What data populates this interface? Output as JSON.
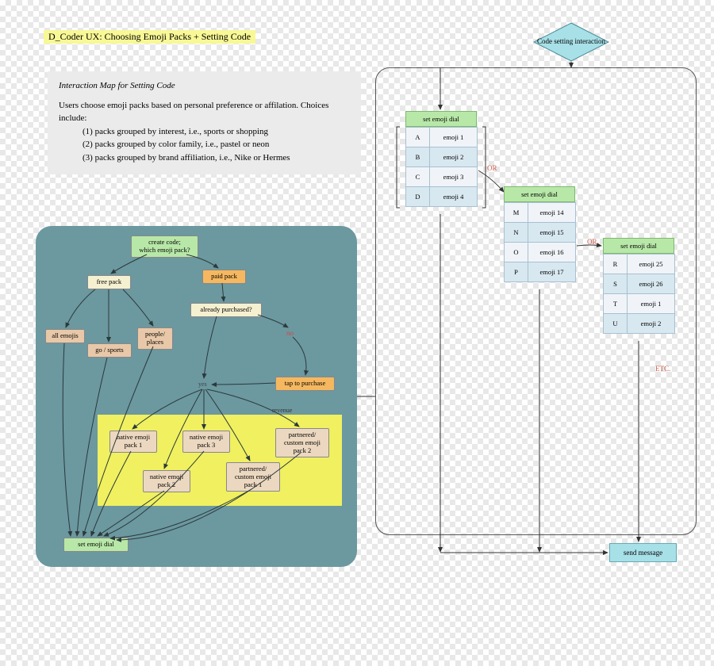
{
  "title": "D_Coder UX: Choosing Emoji Packs + Setting Code",
  "intro": {
    "heading": "Interaction Map for Setting Code",
    "body": "Users choose emoji packs based on personal preference or affilation. Choices include:",
    "items": [
      "(1) packs grouped by interest, i.e., sports or shopping",
      "(2) packs grouped by color family, i.e., pastel or neon",
      "(3) packs grouped by brand affiliation, i.e., Nike or Hermes"
    ]
  },
  "diamond": {
    "label": "Code setting interaction"
  },
  "left": {
    "create": "create code;\nwhich emoji pack?",
    "free": "free pack",
    "paid": "paid pack",
    "purchased": "already purchased?",
    "all": "all emojis",
    "go": "go / sports",
    "people": "people/\nplaces",
    "tap": "tap to purchase",
    "n1": "native emoji\npack 1",
    "n2": "native emoji\npack 2",
    "n3": "native emoji\npack 3",
    "p1": "partnered/\ncustom emoji\npack 1",
    "p2": "partnered/\ncustom emoji\npack 2",
    "setdial": "set emoji dial",
    "revenue": "revenue",
    "yes": "yes",
    "no": "no"
  },
  "dials": [
    {
      "head": "set emoji dial",
      "rows": [
        [
          "A",
          "emoji 1"
        ],
        [
          "B",
          "emoji 2"
        ],
        [
          "C",
          "emoji 3"
        ],
        [
          "D",
          "emoji 4"
        ]
      ]
    },
    {
      "head": "set emoji dial",
      "rows": [
        [
          "M",
          "emoji 14"
        ],
        [
          "N",
          "emoji 15"
        ],
        [
          "O",
          "emoji 16"
        ],
        [
          "P",
          "emoji 17"
        ]
      ]
    },
    {
      "head": "set emoji dial",
      "rows": [
        [
          "R",
          "emoji 25"
        ],
        [
          "S",
          "emoji 26"
        ],
        [
          "T",
          "emoji 1"
        ],
        [
          "U",
          "emoji 2"
        ]
      ]
    }
  ],
  "or": "OR",
  "etc": "ETC.",
  "send": "send message",
  "colors": {
    "panel_bg": "#6c98a0",
    "green": "#b8e8a8",
    "cream": "#f5f0d0",
    "orange": "#f5b860",
    "tan": "#e8c8a8",
    "yellow": "#f0f060",
    "cyan": "#a8e0e8",
    "dial_row": "#d8e8f0"
  }
}
